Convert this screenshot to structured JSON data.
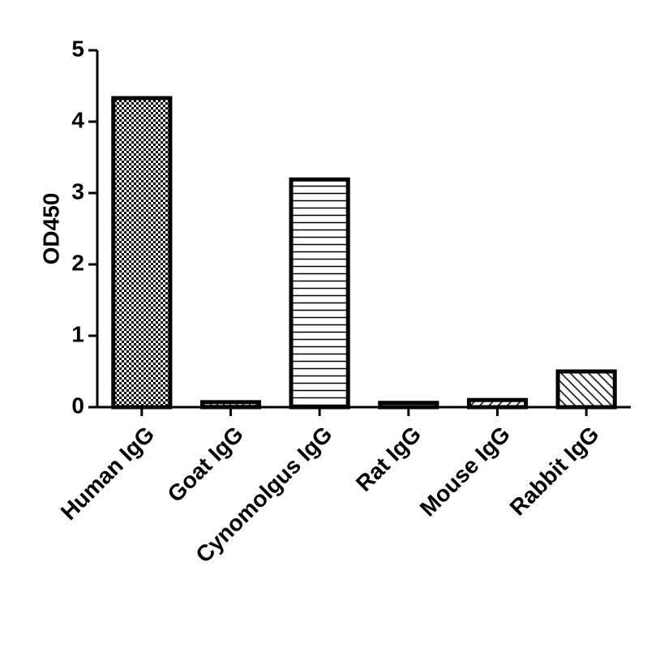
{
  "chart_data": {
    "type": "bar",
    "y_label": "OD450",
    "categories": [
      "Human IgG",
      "Goat IgG",
      "Cynomolgus IgG",
      "Rat IgG",
      "Mouse IgG",
      "Rabbit IgG"
    ],
    "values": [
      4.33,
      0.07,
      3.19,
      0.06,
      0.1,
      0.5
    ],
    "color": "#000000",
    "ylim": [
      0,
      5
    ],
    "yticks": [
      0,
      1,
      2,
      3,
      4,
      5
    ],
    "grid": false
  }
}
